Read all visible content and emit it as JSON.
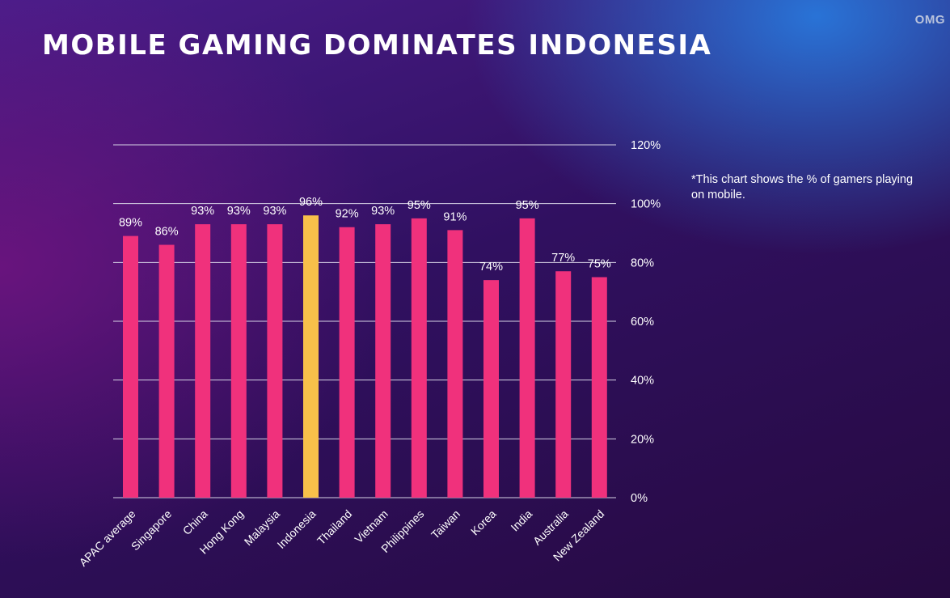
{
  "logo_text": "OMG",
  "title": "MOBILE GAMING DOMINATES INDONESIA",
  "note": "*This chart shows the % of gamers playing on mobile.",
  "colors": {
    "bar": "#f0317c",
    "highlight_bar": "#f8c04a",
    "gridline": "#d7d3e6",
    "text": "#ffffff"
  },
  "chart_data": {
    "type": "bar",
    "categories": [
      "APAC average",
      "Singapore",
      "China",
      "Hong Kong",
      "Malaysia",
      "Indonesia",
      "Thailand",
      "Vietnam",
      "Philippines",
      "Taiwan",
      "Korea",
      "India",
      "Australia",
      "New Zealand"
    ],
    "values": [
      89,
      86,
      93,
      93,
      93,
      96,
      92,
      93,
      95,
      91,
      74,
      95,
      77,
      75
    ],
    "data_labels": [
      "89%",
      "86%",
      "93%",
      "93%",
      "93%",
      "96%",
      "92%",
      "93%",
      "95%",
      "91%",
      "74%",
      "95%",
      "77%",
      "75%"
    ],
    "highlight_category": "Indonesia",
    "ylim": [
      0,
      120
    ],
    "y_ticks": [
      0,
      20,
      40,
      60,
      80,
      100,
      120
    ],
    "y_tick_labels": [
      "0%",
      "20%",
      "40%",
      "60%",
      "80%",
      "100%",
      "120%"
    ],
    "y_axis_side": "right",
    "grid": true,
    "legend": "none"
  }
}
